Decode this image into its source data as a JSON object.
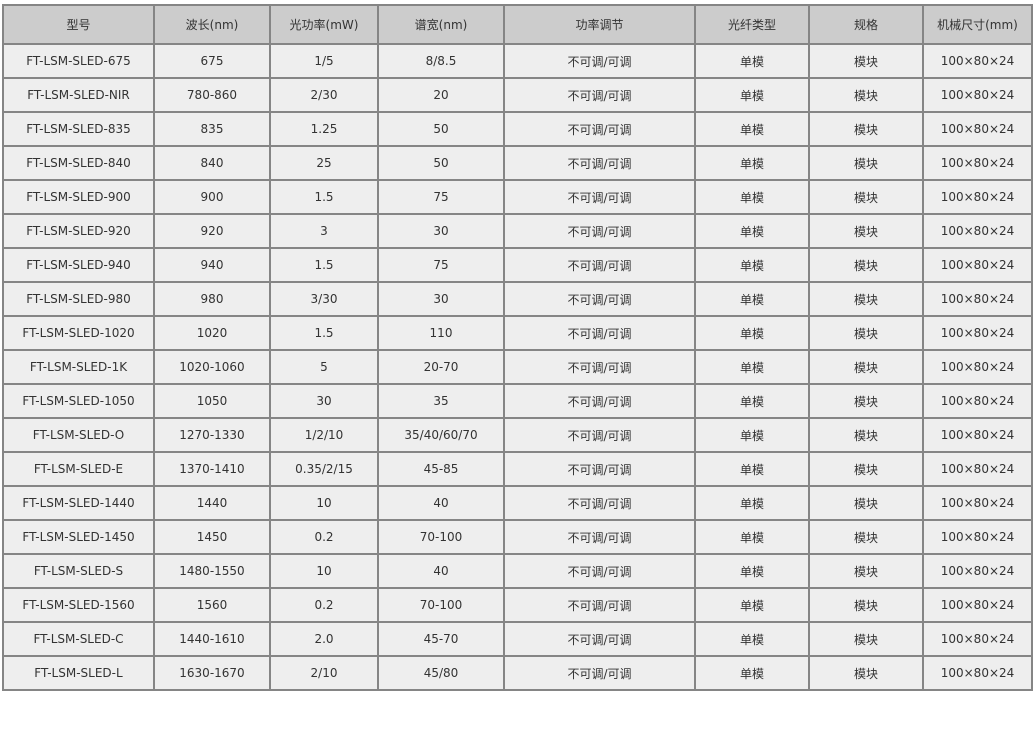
{
  "table": {
    "headers": [
      "型号",
      "波长(nm)",
      "光功率(mW)",
      "谱宽(nm)",
      "功率调节",
      "光纤类型",
      "规格",
      "机械尺寸(mm)"
    ],
    "rows": [
      [
        "FT-LSM-SLED-675",
        "675",
        "1/5",
        "8/8.5",
        "不可调/可调",
        "单模",
        "模块",
        "100×80×24"
      ],
      [
        "FT-LSM-SLED-NIR",
        "780-860",
        "2/30",
        "20",
        "不可调/可调",
        "单模",
        "模块",
        "100×80×24"
      ],
      [
        "FT-LSM-SLED-835",
        "835",
        "1.25",
        "50",
        "不可调/可调",
        "单模",
        "模块",
        "100×80×24"
      ],
      [
        "FT-LSM-SLED-840",
        "840",
        "25",
        "50",
        "不可调/可调",
        "单模",
        "模块",
        "100×80×24"
      ],
      [
        "FT-LSM-SLED-900",
        "900",
        "1.5",
        "75",
        "不可调/可调",
        "单模",
        "模块",
        "100×80×24"
      ],
      [
        "FT-LSM-SLED-920",
        "920",
        "3",
        "30",
        "不可调/可调",
        "单模",
        "模块",
        "100×80×24"
      ],
      [
        "FT-LSM-SLED-940",
        "940",
        "1.5",
        "75",
        "不可调/可调",
        "单模",
        "模块",
        "100×80×24"
      ],
      [
        "FT-LSM-SLED-980",
        "980",
        "3/30",
        "30",
        "不可调/可调",
        "单模",
        "模块",
        "100×80×24"
      ],
      [
        "FT-LSM-SLED-1020",
        "1020",
        "1.5",
        "110",
        "不可调/可调",
        "单模",
        "模块",
        "100×80×24"
      ],
      [
        "FT-LSM-SLED-1K",
        "1020-1060",
        "5",
        "20-70",
        "不可调/可调",
        "单模",
        "模块",
        "100×80×24"
      ],
      [
        "FT-LSM-SLED-1050",
        "1050",
        "30",
        "35",
        "不可调/可调",
        "单模",
        "模块",
        "100×80×24"
      ],
      [
        "FT-LSM-SLED-O",
        "1270-1330",
        "1/2/10",
        "35/40/60/70",
        "不可调/可调",
        "单模",
        "模块",
        "100×80×24"
      ],
      [
        "FT-LSM-SLED-E",
        "1370-1410",
        "0.35/2/15",
        "45-85",
        "不可调/可调",
        "单模",
        "模块",
        "100×80×24"
      ],
      [
        "FT-LSM-SLED-1440",
        "1440",
        "10",
        "40",
        "不可调/可调",
        "单模",
        "模块",
        "100×80×24"
      ],
      [
        "FT-LSM-SLED-1450",
        "1450",
        "0.2",
        "70-100",
        "不可调/可调",
        "单模",
        "模块",
        "100×80×24"
      ],
      [
        "FT-LSM-SLED-S",
        "1480-1550",
        "10",
        "40",
        "不可调/可调",
        "单模",
        "模块",
        "100×80×24"
      ],
      [
        "FT-LSM-SLED-1560",
        "1560",
        "0.2",
        "70-100",
        "不可调/可调",
        "单模",
        "模块",
        "100×80×24"
      ],
      [
        "FT-LSM-SLED-C",
        "1440-1610",
        "2.0",
        "45-70",
        "不可调/可调",
        "单模",
        "模块",
        "100×80×24"
      ],
      [
        "FT-LSM-SLED-L",
        "1630-1670",
        "2/10",
        "45/80",
        "不可调/可调",
        "单模",
        "模块",
        "100×80×24"
      ]
    ]
  },
  "colors": {
    "header_bg": "#cccccc",
    "row_bg": "#eeeeee",
    "border": "#858585",
    "text": "#333333"
  }
}
